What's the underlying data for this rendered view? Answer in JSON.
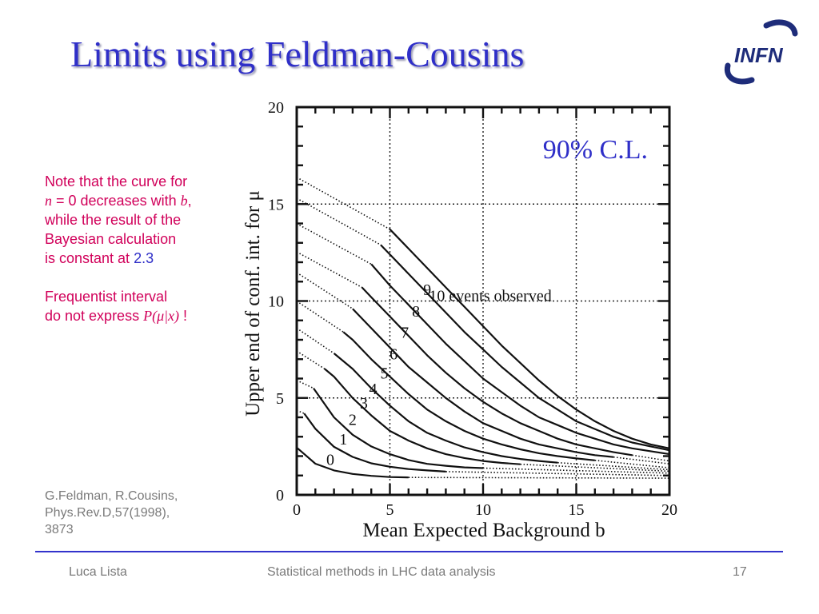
{
  "slide": {
    "title": "Limits using Feldman-Cousins",
    "logo_text": "INFN"
  },
  "note": {
    "l1": "Note that the curve for",
    "l2_n": "n",
    "l2_rest": " = 0 decreases with ",
    "l2_b": "b",
    "l2_end": ",",
    "l3": "while the result of the",
    "l4": "Bayesian calculation",
    "l5": "is constant at ",
    "l5_value": "2.3",
    "l6": "Frequentist interval",
    "l7": "do not express ",
    "l7_formula": "P(μ|x)",
    "l7_end": " !"
  },
  "citation": {
    "line1": "G.Feldman, R.Cousins,",
    "line2": "Phys.Rev.D,57(1998),",
    "line3": "3873"
  },
  "footer": {
    "author": "Luca Lista",
    "course": "Statistical methods in LHC data analysis",
    "page": "17"
  },
  "colors": {
    "title": "#2f2fc8",
    "note": "#d1005a",
    "divider": "#3333cc",
    "logo": "#1e2c7a"
  },
  "chart_data": {
    "type": "line",
    "title": "",
    "annotation": "90% C.L.",
    "xlabel": "Mean Expected Background b",
    "ylabel": "Upper end of conf. int. for μ",
    "xlim": [
      0,
      20
    ],
    "ylim": [
      0,
      20
    ],
    "x_ticks": [
      0,
      5,
      10,
      15,
      20
    ],
    "y_ticks": [
      0,
      5,
      10,
      15,
      20
    ],
    "grid": true,
    "series_label_suffix": "events observed",
    "series": [
      {
        "n": 0,
        "label": "0",
        "solid": [
          [
            0,
            2.44
          ],
          [
            1,
            1.61
          ],
          [
            2,
            1.26
          ],
          [
            3,
            1.08
          ],
          [
            4,
            0.98
          ],
          [
            5,
            0.92
          ],
          [
            6,
            0.9
          ]
        ],
        "dotted": [
          [
            6,
            0.9
          ],
          [
            20,
            0.86
          ]
        ]
      },
      {
        "n": 1,
        "label": "1",
        "dotted": [
          [
            0,
            4.36
          ],
          [
            0.4,
            4.2
          ]
        ],
        "solid": [
          [
            0.4,
            4.2
          ],
          [
            1,
            3.41
          ],
          [
            2,
            2.48
          ],
          [
            3,
            1.96
          ],
          [
            4,
            1.63
          ],
          [
            5,
            1.45
          ],
          [
            6,
            1.33
          ],
          [
            7,
            1.26
          ],
          [
            8,
            1.2
          ]
        ],
        "dotted_tail": [
          [
            8,
            1.2
          ],
          [
            20,
            1.0
          ]
        ]
      },
      {
        "n": 2,
        "label": "2",
        "dotted": [
          [
            0,
            5.91
          ],
          [
            0.9,
            5.5
          ]
        ],
        "solid": [
          [
            0.9,
            5.5
          ],
          [
            2,
            4.0
          ],
          [
            3,
            3.1
          ],
          [
            4,
            2.5
          ],
          [
            5,
            2.1
          ],
          [
            6,
            1.8
          ],
          [
            7,
            1.6
          ],
          [
            8,
            1.5
          ],
          [
            9,
            1.42
          ],
          [
            10,
            1.38
          ]
        ],
        "dotted_tail": [
          [
            10,
            1.38
          ],
          [
            20,
            1.12
          ]
        ]
      },
      {
        "n": 3,
        "label": "3",
        "dotted": [
          [
            0,
            7.42
          ],
          [
            1.5,
            6.5
          ]
        ],
        "solid": [
          [
            1.5,
            6.5
          ],
          [
            2,
            6.1
          ],
          [
            3,
            5.0
          ],
          [
            4,
            4.1
          ],
          [
            5,
            3.3
          ],
          [
            6,
            2.8
          ],
          [
            7,
            2.4
          ],
          [
            8,
            2.1
          ],
          [
            9,
            1.9
          ],
          [
            10,
            1.75
          ],
          [
            11,
            1.65
          ],
          [
            12,
            1.58
          ]
        ],
        "dotted_tail": [
          [
            12,
            1.58
          ],
          [
            20,
            1.22
          ]
        ]
      },
      {
        "n": 4,
        "label": "4",
        "dotted": [
          [
            0,
            8.6
          ],
          [
            2,
            7.3
          ]
        ],
        "solid": [
          [
            2,
            7.3
          ],
          [
            3,
            6.5
          ],
          [
            4,
            5.5
          ],
          [
            5,
            4.6
          ],
          [
            6,
            3.8
          ],
          [
            7,
            3.2
          ],
          [
            8,
            2.8
          ],
          [
            9,
            2.45
          ],
          [
            10,
            2.2
          ],
          [
            11,
            2.0
          ],
          [
            12,
            1.85
          ],
          [
            13,
            1.75
          ],
          [
            14,
            1.66
          ]
        ],
        "dotted_tail": [
          [
            14,
            1.66
          ],
          [
            20,
            1.3
          ]
        ]
      },
      {
        "n": 5,
        "label": "5",
        "dotted": [
          [
            0,
            9.99
          ],
          [
            2.5,
            8.4
          ]
        ],
        "solid": [
          [
            2.5,
            8.4
          ],
          [
            3,
            8.0
          ],
          [
            4,
            7.0
          ],
          [
            5,
            6.1
          ],
          [
            6,
            5.2
          ],
          [
            7,
            4.4
          ],
          [
            8,
            3.8
          ],
          [
            9,
            3.3
          ],
          [
            10,
            2.9
          ],
          [
            11,
            2.6
          ],
          [
            12,
            2.35
          ],
          [
            13,
            2.15
          ],
          [
            14,
            2.0
          ],
          [
            15,
            1.88
          ],
          [
            16,
            1.78
          ]
        ],
        "dotted_tail": [
          [
            16,
            1.78
          ],
          [
            20,
            1.4
          ]
        ]
      },
      {
        "n": 6,
        "label": "6",
        "dotted": [
          [
            0,
            11.47
          ],
          [
            3,
            9.6
          ]
        ],
        "solid": [
          [
            3,
            9.6
          ],
          [
            4,
            8.6
          ],
          [
            5,
            7.6
          ],
          [
            6,
            6.6
          ],
          [
            7,
            5.8
          ],
          [
            8,
            5.0
          ],
          [
            9,
            4.3
          ],
          [
            10,
            3.7
          ],
          [
            11,
            3.3
          ],
          [
            12,
            2.9
          ],
          [
            13,
            2.6
          ],
          [
            14,
            2.4
          ],
          [
            15,
            2.2
          ],
          [
            16,
            2.05
          ],
          [
            17,
            1.95
          ]
        ],
        "dotted_tail": [
          [
            17,
            1.95
          ],
          [
            20,
            1.6
          ]
        ]
      },
      {
        "n": 7,
        "label": "7",
        "dotted": [
          [
            0,
            12.53
          ],
          [
            3.5,
            10.7
          ]
        ],
        "solid": [
          [
            3.5,
            10.7
          ],
          [
            4,
            10.2
          ],
          [
            5,
            9.2
          ],
          [
            6,
            8.2
          ],
          [
            7,
            7.2
          ],
          [
            8,
            6.3
          ],
          [
            9,
            5.5
          ],
          [
            10,
            4.8
          ],
          [
            11,
            4.2
          ],
          [
            12,
            3.7
          ],
          [
            13,
            3.3
          ],
          [
            14,
            2.9
          ],
          [
            15,
            2.6
          ],
          [
            16,
            2.4
          ],
          [
            17,
            2.2
          ],
          [
            18,
            2.05
          ]
        ],
        "dotted_tail": [
          [
            18,
            2.05
          ],
          [
            20,
            1.75
          ]
        ]
      },
      {
        "n": 8,
        "label": "8",
        "dotted": [
          [
            0,
            13.99
          ],
          [
            4,
            11.9
          ]
        ],
        "solid": [
          [
            4,
            11.9
          ],
          [
            5,
            10.8
          ],
          [
            6,
            9.8
          ],
          [
            7,
            8.8
          ],
          [
            8,
            7.8
          ],
          [
            9,
            6.9
          ],
          [
            10,
            6.0
          ],
          [
            11,
            5.3
          ],
          [
            12,
            4.6
          ],
          [
            13,
            4.0
          ],
          [
            14,
            3.6
          ],
          [
            15,
            3.2
          ],
          [
            16,
            2.9
          ],
          [
            17,
            2.6
          ],
          [
            18,
            2.4
          ],
          [
            19,
            2.25
          ],
          [
            20,
            2.1
          ]
        ]
      },
      {
        "n": 9,
        "label": "9",
        "dotted": [
          [
            0,
            15.3
          ],
          [
            4.5,
            12.9
          ]
        ],
        "solid": [
          [
            4.5,
            12.9
          ],
          [
            5,
            12.4
          ],
          [
            6,
            11.4
          ],
          [
            7,
            10.4
          ],
          [
            8,
            9.4
          ],
          [
            9,
            8.4
          ],
          [
            10,
            7.5
          ],
          [
            11,
            6.6
          ],
          [
            12,
            5.8
          ],
          [
            13,
            5.0
          ],
          [
            14,
            4.4
          ],
          [
            15,
            3.8
          ],
          [
            16,
            3.4
          ],
          [
            17,
            3.0
          ],
          [
            18,
            2.7
          ],
          [
            19,
            2.5
          ],
          [
            20,
            2.3
          ]
        ]
      },
      {
        "n": 10,
        "label": "10",
        "dotted": [
          [
            0,
            16.38
          ],
          [
            5,
            13.7
          ]
        ],
        "solid": [
          [
            5,
            13.7
          ],
          [
            6,
            12.7
          ],
          [
            7,
            11.7
          ],
          [
            8,
            10.7
          ],
          [
            9,
            9.7
          ],
          [
            10,
            8.7
          ],
          [
            11,
            7.7
          ],
          [
            12,
            6.8
          ],
          [
            13,
            5.9
          ],
          [
            14,
            5.1
          ],
          [
            15,
            4.4
          ],
          [
            16,
            3.8
          ],
          [
            17,
            3.3
          ],
          [
            18,
            2.9
          ],
          [
            19,
            2.6
          ],
          [
            20,
            2.4
          ]
        ]
      }
    ]
  }
}
